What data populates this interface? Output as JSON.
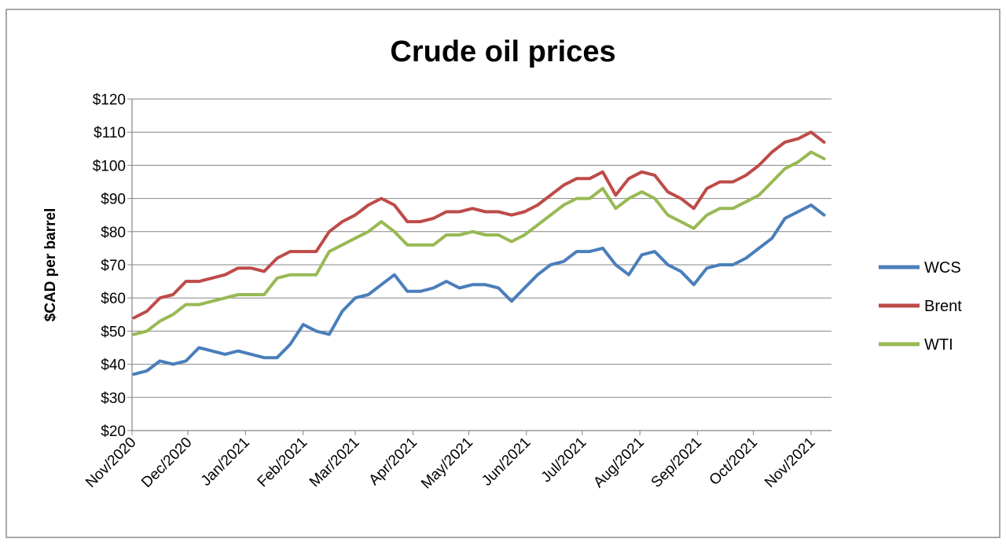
{
  "chart_data": {
    "type": "line",
    "title": "Crude oil prices",
    "xlabel": "",
    "ylabel": "$CAD per barrel",
    "ylim": [
      20,
      120
    ],
    "yticks": [
      "$20",
      "$30",
      "$40",
      "$50",
      "$60",
      "$70",
      "$80",
      "$90",
      "$100",
      "$110",
      "$120"
    ],
    "xticks": [
      "Nov/2020",
      "Dec/2020",
      "Jan/2021",
      "Feb/2021",
      "Mar/2021",
      "Apr/2021",
      "May/2021",
      "Jun/2021",
      "Jul/2021",
      "Aug/2021",
      "Sep/2021",
      "Oct/2021",
      "Nov/2021"
    ],
    "grid": "horizontal",
    "legend_position": "right",
    "x": [
      "2020-11-02",
      "2020-11-09",
      "2020-11-16",
      "2020-11-23",
      "2020-11-30",
      "2020-12-07",
      "2020-12-14",
      "2020-12-21",
      "2020-12-28",
      "2021-01-04",
      "2021-01-11",
      "2021-01-18",
      "2021-01-25",
      "2021-02-01",
      "2021-02-08",
      "2021-02-15",
      "2021-02-22",
      "2021-03-01",
      "2021-03-08",
      "2021-03-15",
      "2021-03-22",
      "2021-03-29",
      "2021-04-05",
      "2021-04-12",
      "2021-04-19",
      "2021-04-26",
      "2021-05-03",
      "2021-05-10",
      "2021-05-17",
      "2021-05-24",
      "2021-05-31",
      "2021-06-07",
      "2021-06-14",
      "2021-06-21",
      "2021-06-28",
      "2021-07-05",
      "2021-07-12",
      "2021-07-19",
      "2021-07-26",
      "2021-08-02",
      "2021-08-09",
      "2021-08-16",
      "2021-08-23",
      "2021-08-30",
      "2021-09-06",
      "2021-09-13",
      "2021-09-20",
      "2021-09-27",
      "2021-10-04",
      "2021-10-11",
      "2021-10-18",
      "2021-10-25",
      "2021-11-01",
      "2021-11-08"
    ],
    "series": [
      {
        "name": "WCS",
        "color": "#4a7ebb",
        "values": [
          37,
          38,
          41,
          40,
          41,
          45,
          44,
          43,
          44,
          43,
          42,
          42,
          46,
          52,
          50,
          49,
          56,
          60,
          61,
          64,
          67,
          62,
          62,
          63,
          65,
          63,
          64,
          64,
          63,
          59,
          63,
          67,
          70,
          71,
          74,
          74,
          75,
          70,
          67,
          73,
          74,
          70,
          68,
          64,
          69,
          70,
          70,
          72,
          75,
          78,
          84,
          86,
          88,
          85
        ]
      },
      {
        "name": "Brent",
        "color": "#be4b48",
        "values": [
          54,
          56,
          60,
          61,
          65,
          65,
          66,
          67,
          69,
          69,
          68,
          72,
          74,
          74,
          74,
          80,
          83,
          85,
          88,
          90,
          88,
          83,
          83,
          84,
          86,
          86,
          87,
          86,
          86,
          85,
          86,
          88,
          91,
          94,
          96,
          96,
          98,
          91,
          96,
          98,
          97,
          92,
          90,
          87,
          93,
          95,
          95,
          97,
          100,
          104,
          107,
          108,
          110,
          107
        ]
      },
      {
        "name": "WTI",
        "color": "#98b954",
        "values": [
          49,
          50,
          53,
          55,
          58,
          58,
          59,
          60,
          61,
          61,
          61,
          66,
          67,
          67,
          67,
          74,
          76,
          78,
          80,
          83,
          80,
          76,
          76,
          76,
          79,
          79,
          80,
          79,
          79,
          77,
          79,
          82,
          85,
          88,
          90,
          90,
          93,
          87,
          90,
          92,
          90,
          85,
          83,
          81,
          85,
          87,
          87,
          89,
          91,
          95,
          99,
          101,
          104,
          102
        ]
      }
    ]
  }
}
